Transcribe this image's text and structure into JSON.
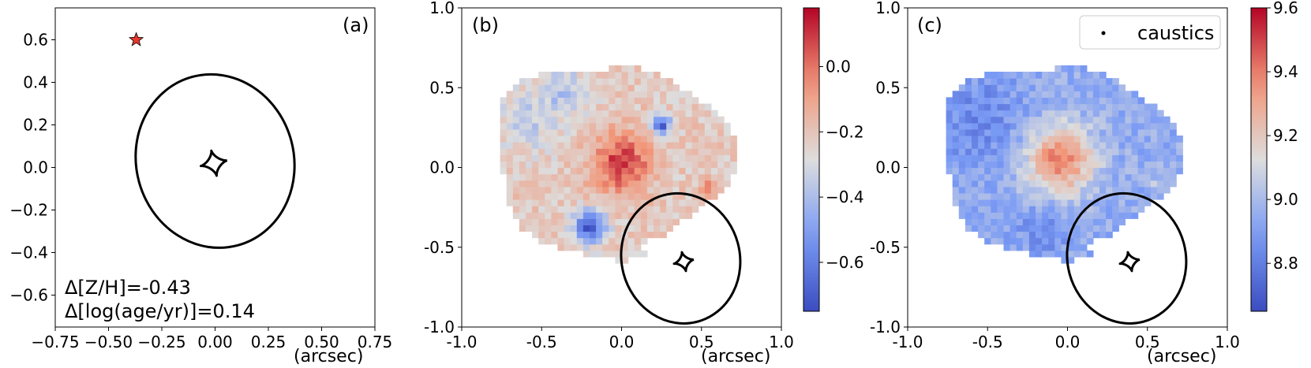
{
  "colors": {
    "axis": "#000000",
    "curve": "#000000",
    "star_fill": "#e8372c",
    "bg": "#ffffff"
  },
  "chart_data": [
    {
      "id": "a",
      "type": "line",
      "panel_label": "(a)",
      "xlabel": "(arcsec)",
      "xlim": [
        -0.75,
        0.75
      ],
      "ylim": [
        -0.75,
        0.75
      ],
      "xticks": [
        -0.75,
        -0.5,
        -0.25,
        0.0,
        0.25,
        0.5,
        0.75
      ],
      "xtick_labels": [
        "−0.75",
        "−0.50",
        "−0.25",
        "0.00",
        "0.25",
        "0.50",
        "0.75"
      ],
      "yticks": [
        0.6,
        0.4,
        0.2,
        0.0,
        -0.2,
        -0.4,
        -0.6
      ],
      "ytick_labels": [
        "0.6",
        "0.4",
        "0.2",
        "0.0",
        "−0.2",
        "−0.4",
        "−0.6"
      ],
      "critical_curve": {
        "center": [
          0.0,
          0.03
        ],
        "semi_axes": [
          0.37,
          0.41
        ],
        "rotation_deg": -15
      },
      "caustic": {
        "center": [
          -0.005,
          0.02
        ],
        "size": 0.06
      },
      "source_star": {
        "x": -0.37,
        "y": 0.6
      },
      "annotations": [
        "Δ[Z/H]=-0.43",
        "Δ[log(age/yr)]=0.14"
      ]
    },
    {
      "id": "b",
      "type": "heatmap",
      "panel_label": "(b)",
      "xlabel": "(arcsec)",
      "xlim": [
        -1.0,
        1.0
      ],
      "ylim": [
        -1.0,
        1.0
      ],
      "xticks": [
        -1.0,
        -0.5,
        0.0,
        0.5,
        1.0
      ],
      "xtick_labels": [
        "-1.0",
        "-0.5",
        "0.0",
        "0.5",
        "1.0"
      ],
      "yticks": [
        1.0,
        0.5,
        0.0,
        -0.5,
        -1.0
      ],
      "ytick_labels": [
        "1.0",
        "0.5",
        "0.0",
        "-0.5",
        "-1.0"
      ],
      "colorbar": {
        "min": -0.75,
        "max": 0.18,
        "ticks": [
          0.0,
          -0.2,
          -0.4,
          -0.6
        ],
        "tick_labels": [
          "0.0",
          "−0.2",
          "−0.4",
          "−0.6"
        ],
        "colormap": "coolwarm"
      },
      "field": {
        "base": -0.22,
        "blobs": [
          {
            "x": 0.0,
            "y": 0.03,
            "amp": 0.32,
            "sigma": 0.13
          },
          {
            "x": -0.2,
            "y": -0.37,
            "amp": -0.48,
            "sigma": 0.07
          },
          {
            "x": 0.25,
            "y": 0.27,
            "amp": -0.48,
            "sigma": 0.04
          },
          {
            "x": -0.58,
            "y": 0.3,
            "amp": -0.12,
            "sigma": 0.15
          },
          {
            "x": 0.55,
            "y": -0.13,
            "amp": 0.15,
            "sigma": 0.05
          },
          {
            "x": -0.35,
            "y": 0.48,
            "amp": -0.15,
            "sigma": 0.1
          }
        ]
      },
      "critical_curve": {
        "center": [
          0.37,
          -0.57
        ],
        "semi_axes": [
          0.37,
          0.41
        ],
        "rotation_deg": -15
      },
      "caustic": {
        "center": [
          0.39,
          -0.59
        ],
        "size": 0.06
      }
    },
    {
      "id": "c",
      "type": "heatmap",
      "panel_label": "(c)",
      "xlabel": "(arcsec)",
      "xlim": [
        -1.0,
        1.0
      ],
      "ylim": [
        -1.0,
        1.0
      ],
      "xticks": [
        -1.0,
        -0.5,
        0.0,
        0.5,
        1.0
      ],
      "xtick_labels": [
        "-1.0",
        "-0.5",
        "0.0",
        "0.5",
        "1.0"
      ],
      "yticks": [
        1.0,
        0.5,
        0.0,
        -0.5,
        -1.0
      ],
      "ytick_labels": [
        "1.0",
        "0.5",
        "0.0",
        "-0.5",
        "-1.0"
      ],
      "legend": {
        "label": "caustics",
        "location": "upper-right"
      },
      "colorbar": {
        "min": 8.65,
        "max": 9.6,
        "ticks": [
          9.6,
          9.4,
          9.2,
          9.0,
          8.8
        ],
        "tick_labels": [
          "9.6",
          "9.4",
          "9.2",
          "9.0",
          "8.8"
        ],
        "colormap": "coolwarm"
      },
      "field": {
        "base": 8.95,
        "blobs": [
          {
            "x": -0.05,
            "y": 0.05,
            "amp": 0.45,
            "sigma": 0.15
          },
          {
            "x": -0.55,
            "y": 0.3,
            "amp": -0.12,
            "sigma": 0.2
          },
          {
            "x": -0.15,
            "y": -0.4,
            "amp": -0.1,
            "sigma": 0.12
          },
          {
            "x": 0.6,
            "y": -0.1,
            "amp": 0.1,
            "sigma": 0.06
          }
        ]
      },
      "critical_curve": {
        "center": [
          0.37,
          -0.57
        ],
        "semi_axes": [
          0.37,
          0.41
        ],
        "rotation_deg": -15
      },
      "caustic": {
        "center": [
          0.39,
          -0.59
        ],
        "size": 0.06
      }
    }
  ]
}
